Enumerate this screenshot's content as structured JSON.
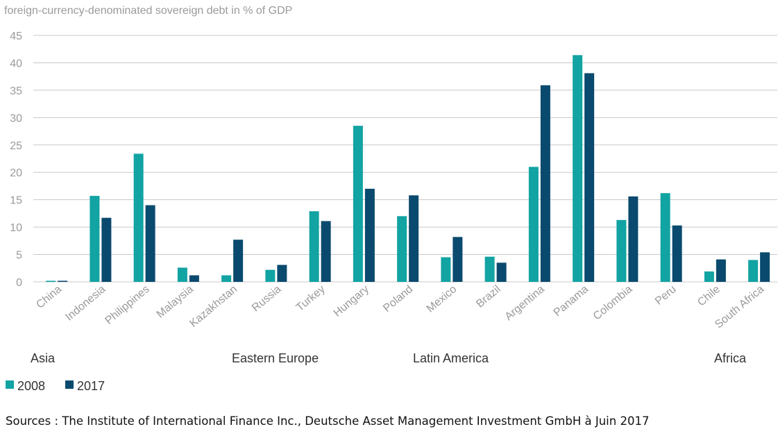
{
  "chart_data": {
    "type": "bar",
    "unit_label": "foreign-currency-denominated sovereign debt in % of GDP",
    "categories": [
      "China",
      "Indonesia",
      "Philippines",
      "Malaysia",
      "Kazakhstan",
      "Russia",
      "Turkey",
      "Hungary",
      "Poland",
      "Mexico",
      "Brazil",
      "Argentina",
      "Panama",
      "Colombia",
      "Peru",
      "Chile",
      "South Africa"
    ],
    "series": [
      {
        "name": "2008",
        "color": "#12a3a3",
        "values": [
          0.2,
          15.7,
          23.4,
          2.6,
          1.2,
          2.2,
          12.9,
          28.5,
          12.0,
          4.5,
          4.6,
          21.0,
          41.4,
          11.3,
          16.2,
          1.9,
          4.0
        ]
      },
      {
        "name": "2017",
        "color": "#0a4a6e",
        "values": [
          0.2,
          11.7,
          14.0,
          1.2,
          7.7,
          3.1,
          11.1,
          17.0,
          15.8,
          8.2,
          3.5,
          35.9,
          38.1,
          15.6,
          10.3,
          4.1,
          5.4
        ]
      }
    ],
    "ylim": [
      0,
      45
    ],
    "yticks": [
      "0",
      "5",
      "10",
      "15",
      "20",
      "25",
      "30",
      "35",
      "40",
      "45"
    ],
    "regions": [
      {
        "label": "Asia",
        "anchor": "China"
      },
      {
        "label": "Eastern Europe",
        "anchor": "Russia"
      },
      {
        "label": "Latin America",
        "anchor": "Mexico"
      },
      {
        "label": "Africa",
        "anchor": "South Africa"
      }
    ],
    "grid": "horizontal",
    "legend": "bottom-left"
  },
  "sources": "Sources : The Institute of International Finance Inc., Deutsche Asset Management Investment GmbH à Juin 2017"
}
